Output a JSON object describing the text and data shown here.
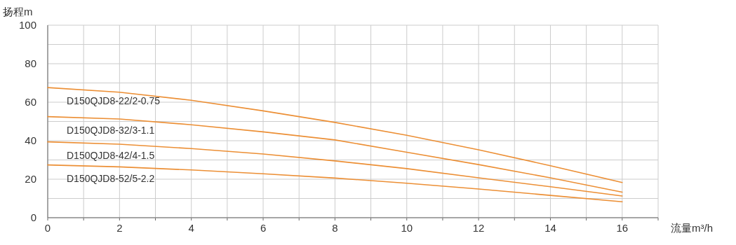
{
  "chart_data": {
    "type": "line",
    "xlabel": "流量m³/h",
    "ylabel": "扬程m",
    "xlim": [
      0,
      17
    ],
    "xticks": [
      0,
      {
        "value": 1,
        "label": null
      },
      2,
      {
        "value": 3,
        "label": null
      },
      4,
      {
        "value": 5,
        "label": null
      },
      6,
      {
        "value": 7,
        "label": null
      },
      8,
      {
        "value": 9,
        "label": null
      },
      10,
      {
        "value": 11,
        "label": null
      },
      12,
      {
        "value": 13,
        "label": null
      },
      14,
      {
        "value": 15,
        "label": null
      },
      16,
      {
        "value": 17,
        "label": null
      }
    ],
    "ylim": [
      0,
      100
    ],
    "yticks": [
      0,
      {
        "value": 10,
        "label": null
      },
      20,
      {
        "value": 30,
        "label": null
      },
      40,
      {
        "value": 50,
        "label": null
      },
      60,
      {
        "value": 70,
        "label": null
      },
      80,
      {
        "value": 90,
        "label": null
      },
      100
    ],
    "grid": true,
    "marker": "none",
    "line_style": "solid",
    "x": [
      0,
      2,
      4,
      6,
      8,
      10,
      12,
      14,
      16
    ],
    "series": [
      {
        "name": "D150QJD8-22/2-0.75",
        "color": "#ec8f35",
        "values": [
          67.6,
          65.2,
          61,
          55.5,
          49.5,
          42.8,
          35.3,
          27,
          18.3
        ]
      },
      {
        "name": "D150QJD8-32/3-1.1",
        "color": "#ec8f35",
        "values": [
          52.5,
          51.3,
          48.3,
          44.6,
          40.4,
          34,
          27.6,
          20.7,
          13.3
        ]
      },
      {
        "name": "D150QJD8-42/4-1.5",
        "color": "#ec8f35",
        "values": [
          39.4,
          38.2,
          35.9,
          33.1,
          29.5,
          25.5,
          20.7,
          16.1,
          11.3
        ]
      },
      {
        "name": "D150QJD8-52/5-2.2",
        "color": "#ec8f35",
        "values": [
          27.4,
          26.4,
          24.8,
          22.8,
          20.6,
          17.9,
          14.9,
          11.6,
          8.3
        ]
      }
    ]
  }
}
